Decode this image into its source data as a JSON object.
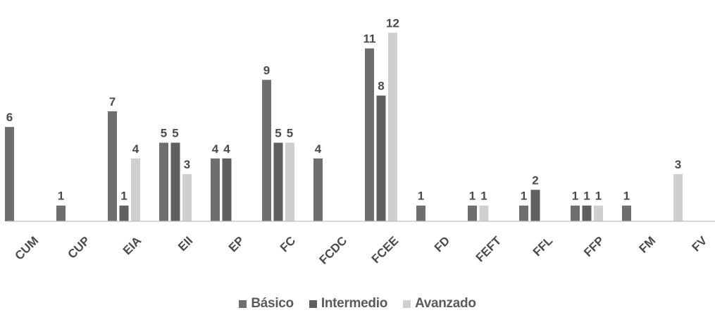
{
  "chart_data": {
    "type": "bar",
    "categories": [
      "CUM",
      "CUP",
      "EIA",
      "EII",
      "EP",
      "FC",
      "FCDC",
      "FCEE",
      "FD",
      "FEFT",
      "FFL",
      "FFP",
      "FM",
      "FV"
    ],
    "series": [
      {
        "name": "Básico",
        "color": "#6e6e6e",
        "values": [
          6,
          1,
          7,
          5,
          4,
          9,
          4,
          11,
          1,
          1,
          1,
          1,
          1,
          null
        ]
      },
      {
        "name": "Intermedio",
        "color": "#5f5f5f",
        "values": [
          null,
          null,
          1,
          5,
          4,
          5,
          null,
          8,
          null,
          null,
          2,
          1,
          null,
          null
        ]
      },
      {
        "name": "Avanzado",
        "color": "#cfcfcf",
        "values": [
          null,
          null,
          4,
          3,
          null,
          5,
          null,
          12,
          null,
          1,
          null,
          1,
          null,
          3
        ]
      }
    ],
    "ylim": [
      0,
      12
    ],
    "grid": false,
    "legend_position": "bottom"
  }
}
